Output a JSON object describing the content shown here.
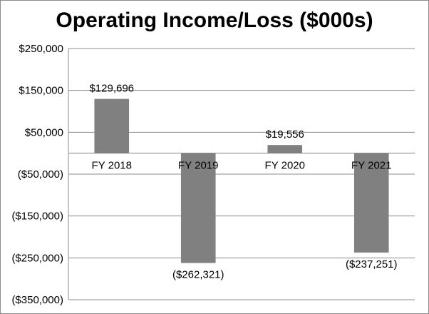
{
  "chart_data": {
    "type": "bar",
    "title": "Operating Income/Loss ($000s)",
    "categories": [
      "FY 2018",
      "FY 2019",
      "FY 2020",
      "FY 2021"
    ],
    "values": [
      129696,
      -262321,
      19556,
      -237251
    ],
    "data_labels": [
      "$129,696",
      "($262,321)",
      "$19,556",
      "($237,251)"
    ],
    "ylim": [
      -350000,
      250000
    ],
    "yticks": [
      250000,
      150000,
      50000,
      -50000,
      -150000,
      -250000,
      -350000
    ],
    "ytick_labels": [
      "$250,000",
      "$150,000",
      "$50,000",
      "($50,000)",
      "($150,000)",
      "($250,000)",
      "($350,000)"
    ],
    "xlabel": "",
    "ylabel": "",
    "grid": true,
    "legend": "none",
    "bar_color": "#808080",
    "grid_color": "#8c8c8c"
  }
}
